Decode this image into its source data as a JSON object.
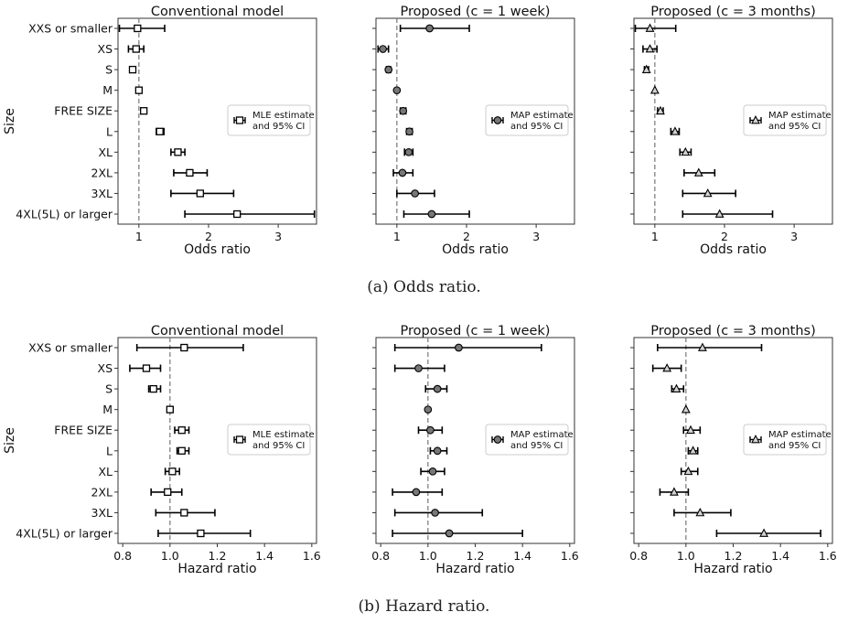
{
  "captions": {
    "a": "(a) Odds ratio.",
    "b": "(b) Hazard ratio."
  },
  "colors": {
    "line": "#000000",
    "dashed": "#777777",
    "square_fill": "#ffffff",
    "circle_fill": "#777777",
    "triangle_fill": "#d3d3d3"
  },
  "chart_data": [
    {
      "type": "scatter",
      "figure": "a",
      "title": "Conventional model",
      "xlabel": "Odds ratio",
      "ylabel": "Size",
      "marker": "square",
      "xlim": [
        0.7,
        3.55
      ],
      "xticks": [
        1,
        2,
        3
      ],
      "reference_line": 1,
      "legend": [
        "MLE estimate",
        "and 95% CI"
      ],
      "legend_position": "right",
      "categories": [
        "XXS or smaller",
        "XS",
        "S",
        "M",
        "FREE SIZE",
        "L",
        "XL",
        "2XL",
        "3XL",
        "4XL(5L) or larger"
      ],
      "estimate": [
        0.98,
        0.96,
        0.91,
        1.0,
        1.07,
        1.3,
        1.56,
        1.73,
        1.88,
        2.41
      ],
      "ci_low": [
        0.72,
        0.85,
        0.87,
        1.0,
        1.03,
        1.25,
        1.46,
        1.5,
        1.46,
        1.66
      ],
      "ci_high": [
        1.37,
        1.07,
        0.95,
        1.0,
        1.11,
        1.36,
        1.66,
        1.98,
        2.36,
        3.52
      ]
    },
    {
      "type": "scatter",
      "figure": "a",
      "title": "Proposed (c = 1 week)",
      "xlabel": "Odds ratio",
      "ylabel": "",
      "marker": "circle",
      "xlim": [
        0.7,
        3.55
      ],
      "xticks": [
        1,
        2,
        3
      ],
      "reference_line": 1,
      "legend": [
        "MAP estimate",
        "and 95% CI"
      ],
      "legend_position": "right",
      "categories": [
        "XXS or smaller",
        "XS",
        "S",
        "M",
        "FREE SIZE",
        "L",
        "XL",
        "2XL",
        "3XL",
        "4XL(5L) or larger"
      ],
      "estimate": [
        1.47,
        0.8,
        0.88,
        1.0,
        1.09,
        1.18,
        1.17,
        1.08,
        1.26,
        1.5
      ],
      "ci_low": [
        1.05,
        0.73,
        0.85,
        1.0,
        1.05,
        1.14,
        1.11,
        0.95,
        1.0,
        1.1
      ],
      "ci_high": [
        2.04,
        0.88,
        0.91,
        1.0,
        1.13,
        1.22,
        1.23,
        1.23,
        1.54,
        2.04
      ]
    },
    {
      "type": "scatter",
      "figure": "a",
      "title": "Proposed (c = 3 months)",
      "xlabel": "Odds ratio",
      "ylabel": "",
      "marker": "triangle",
      "xlim": [
        0.7,
        3.55
      ],
      "xticks": [
        1,
        2,
        3
      ],
      "reference_line": 1,
      "legend": [
        "MAP estimate",
        "and 95% CI"
      ],
      "legend_position": "right",
      "categories": [
        "XXS or smaller",
        "XS",
        "S",
        "M",
        "FREE SIZE",
        "L",
        "XL",
        "2XL",
        "3XL",
        "4XL(5L) or larger"
      ],
      "estimate": [
        0.93,
        0.93,
        0.88,
        1.0,
        1.08,
        1.29,
        1.44,
        1.63,
        1.76,
        1.93
      ],
      "ci_low": [
        0.72,
        0.83,
        0.85,
        1.0,
        1.04,
        1.23,
        1.36,
        1.42,
        1.4,
        1.4
      ],
      "ci_high": [
        1.3,
        1.03,
        0.91,
        1.0,
        1.12,
        1.35,
        1.52,
        1.86,
        2.16,
        2.69
      ]
    },
    {
      "type": "scatter",
      "figure": "b",
      "title": "Conventional model",
      "xlabel": "Hazard ratio",
      "ylabel": "Size",
      "marker": "square",
      "xlim": [
        0.78,
        1.62
      ],
      "xticks": [
        0.8,
        1.0,
        1.2,
        1.4,
        1.6
      ],
      "reference_line": 1,
      "legend": [
        "MLE estimate",
        "and 95% CI"
      ],
      "legend_position": "right",
      "categories": [
        "XXS or smaller",
        "XS",
        "S",
        "M",
        "FREE SIZE",
        "L",
        "XL",
        "2XL",
        "3XL",
        "4XL(5L) or larger"
      ],
      "estimate": [
        1.06,
        0.9,
        0.93,
        1.0,
        1.05,
        1.05,
        1.01,
        0.99,
        1.06,
        1.13
      ],
      "ci_low": [
        0.86,
        0.83,
        0.91,
        1.0,
        1.02,
        1.03,
        0.98,
        0.92,
        0.94,
        0.95
      ],
      "ci_high": [
        1.31,
        0.96,
        0.96,
        1.0,
        1.08,
        1.08,
        1.04,
        1.05,
        1.19,
        1.34
      ]
    },
    {
      "type": "scatter",
      "figure": "b",
      "title": "Proposed (c = 1 week)",
      "xlabel": "Hazard ratio",
      "ylabel": "",
      "marker": "circle",
      "xlim": [
        0.78,
        1.62
      ],
      "xticks": [
        0.8,
        1.0,
        1.2,
        1.4,
        1.6
      ],
      "reference_line": 1,
      "legend": [
        "MAP estimate",
        "and 95% CI"
      ],
      "legend_position": "right",
      "categories": [
        "XXS or smaller",
        "XS",
        "S",
        "M",
        "FREE SIZE",
        "L",
        "XL",
        "2XL",
        "3XL",
        "4XL(5L) or larger"
      ],
      "estimate": [
        1.13,
        0.96,
        1.04,
        1.0,
        1.01,
        1.04,
        1.02,
        0.95,
        1.03,
        1.09
      ],
      "ci_low": [
        0.86,
        0.86,
        0.99,
        1.0,
        0.96,
        1.01,
        0.97,
        0.85,
        0.86,
        0.85
      ],
      "ci_high": [
        1.48,
        1.07,
        1.08,
        1.0,
        1.06,
        1.08,
        1.07,
        1.06,
        1.23,
        1.4
      ]
    },
    {
      "type": "scatter",
      "figure": "b",
      "title": "Proposed (c = 3 months)",
      "xlabel": "Hazard ratio",
      "ylabel": "",
      "marker": "triangle",
      "xlim": [
        0.78,
        1.62
      ],
      "xticks": [
        0.8,
        1.0,
        1.2,
        1.4,
        1.6
      ],
      "reference_line": 1,
      "legend": [
        "MAP estimate",
        "and 95% CI"
      ],
      "legend_position": "right",
      "categories": [
        "XXS or smaller",
        "XS",
        "S",
        "M",
        "FREE SIZE",
        "L",
        "XL",
        "2XL",
        "3XL",
        "4XL(5L) or larger"
      ],
      "estimate": [
        1.07,
        0.92,
        0.96,
        1.0,
        1.02,
        1.03,
        1.01,
        0.95,
        1.06,
        1.33
      ],
      "ci_low": [
        0.88,
        0.86,
        0.94,
        1.0,
        0.99,
        1.01,
        0.98,
        0.89,
        0.95,
        1.13
      ],
      "ci_high": [
        1.32,
        0.98,
        0.99,
        1.0,
        1.06,
        1.05,
        1.05,
        1.01,
        1.19,
        1.57
      ]
    }
  ]
}
